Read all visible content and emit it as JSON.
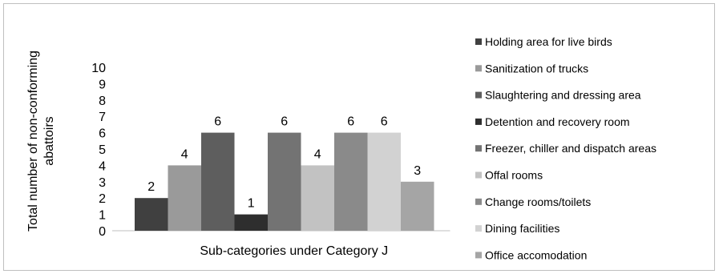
{
  "chart_data": {
    "type": "bar",
    "title": "",
    "xlabel": "Sub-categories under Category J",
    "ylabel": "Total number of non-conforming abattoirs",
    "ylim": [
      0,
      10
    ],
    "yticks": [
      "0",
      "1",
      "2",
      "3",
      "4",
      "5",
      "6",
      "7",
      "8",
      "9",
      "10"
    ],
    "grid": false,
    "legend_position": "right",
    "series": [
      {
        "name": "Holding area for live birds",
        "value": 2,
        "color": "#404040"
      },
      {
        "name": "Sanitization of trucks",
        "value": 4,
        "color": "#9a9a9a"
      },
      {
        "name": "Slaughtering and dressing area",
        "value": 6,
        "color": "#5e5e5e"
      },
      {
        "name": "Detention and recovery room",
        "value": 1,
        "color": "#2e2e2e"
      },
      {
        "name": "Freezer, chiller and dispatch areas",
        "value": 6,
        "color": "#737373"
      },
      {
        "name": "Offal rooms",
        "value": 4,
        "color": "#c2c2c2"
      },
      {
        "name": "Change rooms/toilets",
        "value": 6,
        "color": "#8a8a8a"
      },
      {
        "name": "Dining facilities",
        "value": 6,
        "color": "#d2d2d2"
      },
      {
        "name": "Office accomodation",
        "value": 3,
        "color": "#a5a5a5"
      }
    ]
  }
}
